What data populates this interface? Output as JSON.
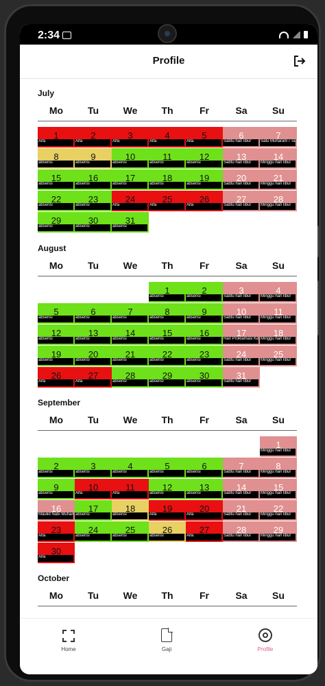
{
  "status_bar": {
    "time": "2:34"
  },
  "header": {
    "title": "Profile"
  },
  "weekdays": [
    "Mo",
    "Tu",
    "We",
    "Th",
    "Fr",
    "Sa",
    "Su"
  ],
  "months": [
    {
      "name": "July",
      "days": [
        {
          "d": "1",
          "c": "red",
          "l": "Alfa"
        },
        {
          "d": "2",
          "c": "red",
          "l": "Alfa"
        },
        {
          "d": "3",
          "c": "red",
          "l": "Alfa"
        },
        {
          "d": "4",
          "c": "red",
          "l": "Alfa"
        },
        {
          "d": "5",
          "c": "red",
          "l": "Alfa"
        },
        {
          "d": "6",
          "c": "pink",
          "l": "Sabtu hari libur"
        },
        {
          "d": "7",
          "c": "pink",
          "l": "Satu Muharam / Tahun Baru"
        },
        {
          "d": "8",
          "c": "yellow",
          "l": "absensi"
        },
        {
          "d": "9",
          "c": "yellow",
          "l": "absensi"
        },
        {
          "d": "10",
          "c": "green",
          "l": "absensi"
        },
        {
          "d": "11",
          "c": "green",
          "l": "absensi"
        },
        {
          "d": "12",
          "c": "green",
          "l": "absensi"
        },
        {
          "d": "13",
          "c": "pink",
          "l": "Sabtu hari libur"
        },
        {
          "d": "14",
          "c": "pink",
          "l": "Minggu hari libur"
        },
        {
          "d": "15",
          "c": "green",
          "l": "absensi"
        },
        {
          "d": "16",
          "c": "green",
          "l": "absensi"
        },
        {
          "d": "17",
          "c": "green",
          "l": "absensi"
        },
        {
          "d": "18",
          "c": "green",
          "l": "absensi"
        },
        {
          "d": "19",
          "c": "green",
          "l": "absensi"
        },
        {
          "d": "20",
          "c": "pink",
          "l": "Sabtu hari libur"
        },
        {
          "d": "21",
          "c": "pink",
          "l": "Minggu hari libur"
        },
        {
          "d": "22",
          "c": "green",
          "l": "absensi"
        },
        {
          "d": "23",
          "c": "green",
          "l": "absensi"
        },
        {
          "d": "24",
          "c": "red",
          "l": "Alfa"
        },
        {
          "d": "25",
          "c": "red",
          "l": "Alfa"
        },
        {
          "d": "26",
          "c": "red",
          "l": "Alfa"
        },
        {
          "d": "27",
          "c": "pink",
          "l": "Sabtu hari libur"
        },
        {
          "d": "28",
          "c": "pink",
          "l": "Minggu hari libur"
        },
        {
          "d": "29",
          "c": "green",
          "l": "absensi"
        },
        {
          "d": "30",
          "c": "green",
          "l": "absensi"
        },
        {
          "d": "31",
          "c": "green",
          "l": "absensi"
        }
      ]
    },
    {
      "name": "August",
      "days": [
        {
          "d": "1",
          "c": "green",
          "l": "absensi"
        },
        {
          "d": "2",
          "c": "green",
          "l": "absensi"
        },
        {
          "d": "3",
          "c": "pink",
          "l": "Sabtu hari libur"
        },
        {
          "d": "4",
          "c": "pink",
          "l": "Minggu hari libur"
        },
        {
          "d": "5",
          "c": "green",
          "l": "absensi"
        },
        {
          "d": "6",
          "c": "green",
          "l": "absensi"
        },
        {
          "d": "7",
          "c": "green",
          "l": "absensi"
        },
        {
          "d": "8",
          "c": "green",
          "l": "absensi"
        },
        {
          "d": "9",
          "c": "green",
          "l": "absensi"
        },
        {
          "d": "10",
          "c": "pink",
          "l": "Sabtu hari libur"
        },
        {
          "d": "11",
          "c": "pink",
          "l": "Minggu hari libur"
        },
        {
          "d": "12",
          "c": "green",
          "l": "absensi"
        },
        {
          "d": "13",
          "c": "green",
          "l": "absensi"
        },
        {
          "d": "14",
          "c": "green",
          "l": "absensi"
        },
        {
          "d": "15",
          "c": "green",
          "l": "absensi"
        },
        {
          "d": "16",
          "c": "green",
          "l": "absensi"
        },
        {
          "d": "17",
          "c": "pink",
          "l": "Hari Proklamasi Kemerdekaan"
        },
        {
          "d": "18",
          "c": "pink",
          "l": "Minggu hari libur"
        },
        {
          "d": "19",
          "c": "green",
          "l": "absensi"
        },
        {
          "d": "20",
          "c": "green",
          "l": "absensi"
        },
        {
          "d": "21",
          "c": "green",
          "l": "absensi"
        },
        {
          "d": "22",
          "c": "green",
          "l": "absensi"
        },
        {
          "d": "23",
          "c": "green",
          "l": "absensi"
        },
        {
          "d": "24",
          "c": "pink",
          "l": "Sabtu hari libur"
        },
        {
          "d": "25",
          "c": "pink",
          "l": "Minggu hari libur"
        },
        {
          "d": "26",
          "c": "red",
          "l": "Alfa"
        },
        {
          "d": "27",
          "c": "red",
          "l": "Alfa"
        },
        {
          "d": "28",
          "c": "green",
          "l": "absensi"
        },
        {
          "d": "29",
          "c": "green",
          "l": "absensi"
        },
        {
          "d": "30",
          "c": "green",
          "l": "absensi"
        },
        {
          "d": "31",
          "c": "pink",
          "l": "Sabtu hari libur"
        }
      ]
    },
    {
      "name": "September",
      "days": [
        {
          "d": "1",
          "c": "pink",
          "l": "Minggu hari libur"
        },
        {
          "d": "2",
          "c": "green",
          "l": "absensi"
        },
        {
          "d": "3",
          "c": "green",
          "l": "absensi"
        },
        {
          "d": "4",
          "c": "green",
          "l": "absensi"
        },
        {
          "d": "5",
          "c": "green",
          "l": "absensi"
        },
        {
          "d": "6",
          "c": "green",
          "l": "absensi"
        },
        {
          "d": "7",
          "c": "pink",
          "l": "Sabtu hari libur"
        },
        {
          "d": "8",
          "c": "pink",
          "l": "Minggu hari libur"
        },
        {
          "d": "9",
          "c": "green",
          "l": "absensi"
        },
        {
          "d": "10",
          "c": "red",
          "l": "Alfa"
        },
        {
          "d": "11",
          "c": "red",
          "l": "Alfa"
        },
        {
          "d": "12",
          "c": "green",
          "l": "absensi"
        },
        {
          "d": "13",
          "c": "green",
          "l": "absensi"
        },
        {
          "d": "14",
          "c": "pink",
          "l": "Sabtu hari libur"
        },
        {
          "d": "15",
          "c": "pink",
          "l": "Minggu hari libur"
        },
        {
          "d": "16",
          "c": "pink",
          "l": "Maulid Nabi Muhammad"
        },
        {
          "d": "17",
          "c": "green",
          "l": "absensi"
        },
        {
          "d": "18",
          "c": "yellow",
          "l": "absensi"
        },
        {
          "d": "19",
          "c": "red",
          "l": "Alfa"
        },
        {
          "d": "20",
          "c": "red",
          "l": "Alfa"
        },
        {
          "d": "21",
          "c": "pink",
          "l": "Sabtu hari libur"
        },
        {
          "d": "22",
          "c": "pink",
          "l": "Minggu hari libur"
        },
        {
          "d": "23",
          "c": "red",
          "l": "Alfa"
        },
        {
          "d": "24",
          "c": "green",
          "l": "absensi"
        },
        {
          "d": "25",
          "c": "green",
          "l": "absensi"
        },
        {
          "d": "26",
          "c": "yellow",
          "l": "absensi"
        },
        {
          "d": "27",
          "c": "red",
          "l": "Alfa"
        },
        {
          "d": "28",
          "c": "pink",
          "l": "Sabtu hari libur"
        },
        {
          "d": "29",
          "c": "pink",
          "l": "Minggu hari libur"
        },
        {
          "d": "30",
          "c": "red",
          "l": "Alfa"
        }
      ]
    },
    {
      "name": "October",
      "days": []
    }
  ],
  "nav": {
    "home": "Home",
    "gaji": "Gaji",
    "profile": "Profile"
  },
  "colors": {
    "red": "#e81010",
    "green": "#6ee11a",
    "yellow": "#e8d063",
    "pink": "#e09090",
    "active": "#e05a80"
  }
}
